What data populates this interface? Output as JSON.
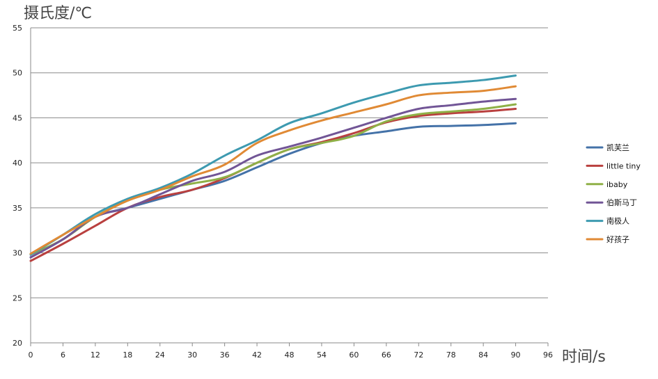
{
  "chart_data": {
    "type": "line",
    "ylabel": "摄氏度/℃",
    "xlabel": "时间/s",
    "xlim": [
      0,
      96
    ],
    "ylim": [
      20,
      55
    ],
    "xticks": [
      0,
      6,
      12,
      18,
      24,
      30,
      36,
      42,
      48,
      54,
      60,
      66,
      72,
      78,
      84,
      90,
      96
    ],
    "yticks": [
      20,
      25,
      30,
      35,
      40,
      45,
      50,
      55
    ],
    "grid": "horizontal",
    "legend_position": "right",
    "x": [
      0,
      6,
      12,
      18,
      24,
      30,
      36,
      42,
      48,
      54,
      60,
      66,
      72,
      78,
      84,
      90
    ],
    "series": [
      {
        "name": "凯芙兰",
        "color": "#4472a8",
        "values": [
          29.5,
          31.5,
          34.0,
          35.0,
          36.0,
          37.0,
          38.0,
          39.5,
          41.0,
          42.2,
          43.0,
          43.5,
          44.0,
          44.1,
          44.2,
          44.4
        ]
      },
      {
        "name": "little tiny",
        "color": "#b9403f",
        "values": [
          29.1,
          31.0,
          33.0,
          35.0,
          36.2,
          37.0,
          38.3,
          40.0,
          41.5,
          42.3,
          43.3,
          44.5,
          45.2,
          45.5,
          45.7,
          46.0
        ]
      },
      {
        "name": "ibaby",
        "color": "#8fb047",
        "values": [
          29.8,
          31.5,
          34.0,
          35.8,
          37.0,
          37.7,
          38.4,
          40.0,
          41.5,
          42.2,
          43.0,
          44.6,
          45.4,
          45.7,
          46.0,
          46.5
        ]
      },
      {
        "name": "伯斯马丁",
        "color": "#715596",
        "values": [
          29.5,
          31.5,
          34.0,
          35.0,
          36.5,
          38.0,
          39.0,
          40.8,
          41.8,
          42.8,
          43.9,
          45.0,
          46.0,
          46.4,
          46.8,
          47.1
        ]
      },
      {
        "name": "南极人",
        "color": "#3d9ab0",
        "values": [
          29.8,
          32.0,
          34.3,
          36.0,
          37.2,
          38.8,
          40.8,
          42.5,
          44.4,
          45.5,
          46.7,
          47.7,
          48.6,
          48.9,
          49.2,
          49.7
        ]
      },
      {
        "name": "好孩子",
        "color": "#e08a35",
        "values": [
          29.9,
          32.0,
          34.0,
          35.8,
          37.0,
          38.5,
          39.8,
          42.2,
          43.6,
          44.7,
          45.6,
          46.5,
          47.5,
          47.8,
          48.0,
          48.5
        ]
      }
    ]
  }
}
